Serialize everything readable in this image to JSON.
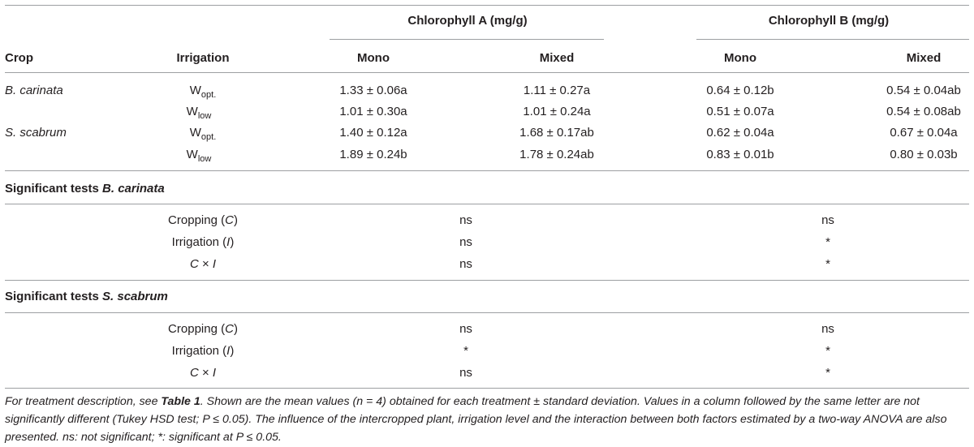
{
  "header": {
    "chl_a": "Chlorophyll A (mg/g)",
    "chl_b": "Chlorophyll B (mg/g)",
    "crop": "Crop",
    "irrigation": "Irrigation",
    "mono_a": "Mono",
    "mixed_a": "Mixed",
    "mono_b": "Mono",
    "mixed_b": "Mixed"
  },
  "rows": [
    {
      "crop": "B. carinata",
      "irr_base": "W",
      "irr_sub": "opt.",
      "a_mono": "1.33 ± 0.06a",
      "a_mixed": "1.11 ± 0.27a",
      "b_mono": "0.64 ± 0.12b",
      "b_mixed": "0.54 ± 0.04ab"
    },
    {
      "crop": "",
      "irr_base": "W",
      "irr_sub": "low",
      "a_mono": "1.01 ± 0.30a",
      "a_mixed": "1.01 ± 0.24a",
      "b_mono": "0.51 ± 0.07a",
      "b_mixed": "0.54 ± 0.08ab"
    },
    {
      "crop": "S. scabrum",
      "irr_base": "W",
      "irr_sub": "opt.",
      "a_mono": "1.40 ± 0.12a",
      "a_mixed": "1.68 ± 0.17ab",
      "b_mono": "0.62 ± 0.04a",
      "b_mixed": "0.67 ± 0.04a"
    },
    {
      "crop": "",
      "irr_base": "W",
      "irr_sub": "low",
      "a_mono": "1.89 ± 0.24b",
      "a_mixed": "1.78 ± 0.24ab",
      "b_mono": "0.83 ± 0.01b",
      "b_mixed": "0.80 ± 0.03b"
    }
  ],
  "sig_carinata": {
    "title_prefix": "Significant tests ",
    "title_species": "B. carinata",
    "tests": [
      {
        "name_pre": "Cropping (",
        "name_var": "C",
        "name_post": ")",
        "a": "ns",
        "b": "ns"
      },
      {
        "name_pre": "Irrigation (",
        "name_var": "I",
        "name_post": ")",
        "a": "ns",
        "b": "*"
      },
      {
        "name_pre": "",
        "name_var": "C",
        "name_post": " × ",
        "name_var2": "I",
        "a": "ns",
        "b": "*"
      }
    ]
  },
  "sig_scabrum": {
    "title_prefix": "Significant tests ",
    "title_species": "S. scabrum",
    "tests": [
      {
        "name_pre": "Cropping (",
        "name_var": "C",
        "name_post": ")",
        "a": "ns",
        "b": "ns"
      },
      {
        "name_pre": "Irrigation (",
        "name_var": "I",
        "name_post": ")",
        "a": "*",
        "b": "*"
      },
      {
        "name_pre": "",
        "name_var": "C",
        "name_post": " × ",
        "name_var2": "I",
        "a": "ns",
        "b": "*"
      }
    ]
  },
  "footnote": {
    "p1": "For treatment description, see ",
    "table_ref": "Table 1",
    "p2": ". Shown are the mean values (n = 4) obtained for each treatment ± standard deviation. Values in a column followed by the same letter are not significantly different (Tukey HSD test; P ≤ 0.05). The influence of the intercropped plant, irrigation level and the interaction between both factors estimated by a two-way ANOVA are also presented. ns: not significant; *: significant at P ≤ 0.05."
  }
}
